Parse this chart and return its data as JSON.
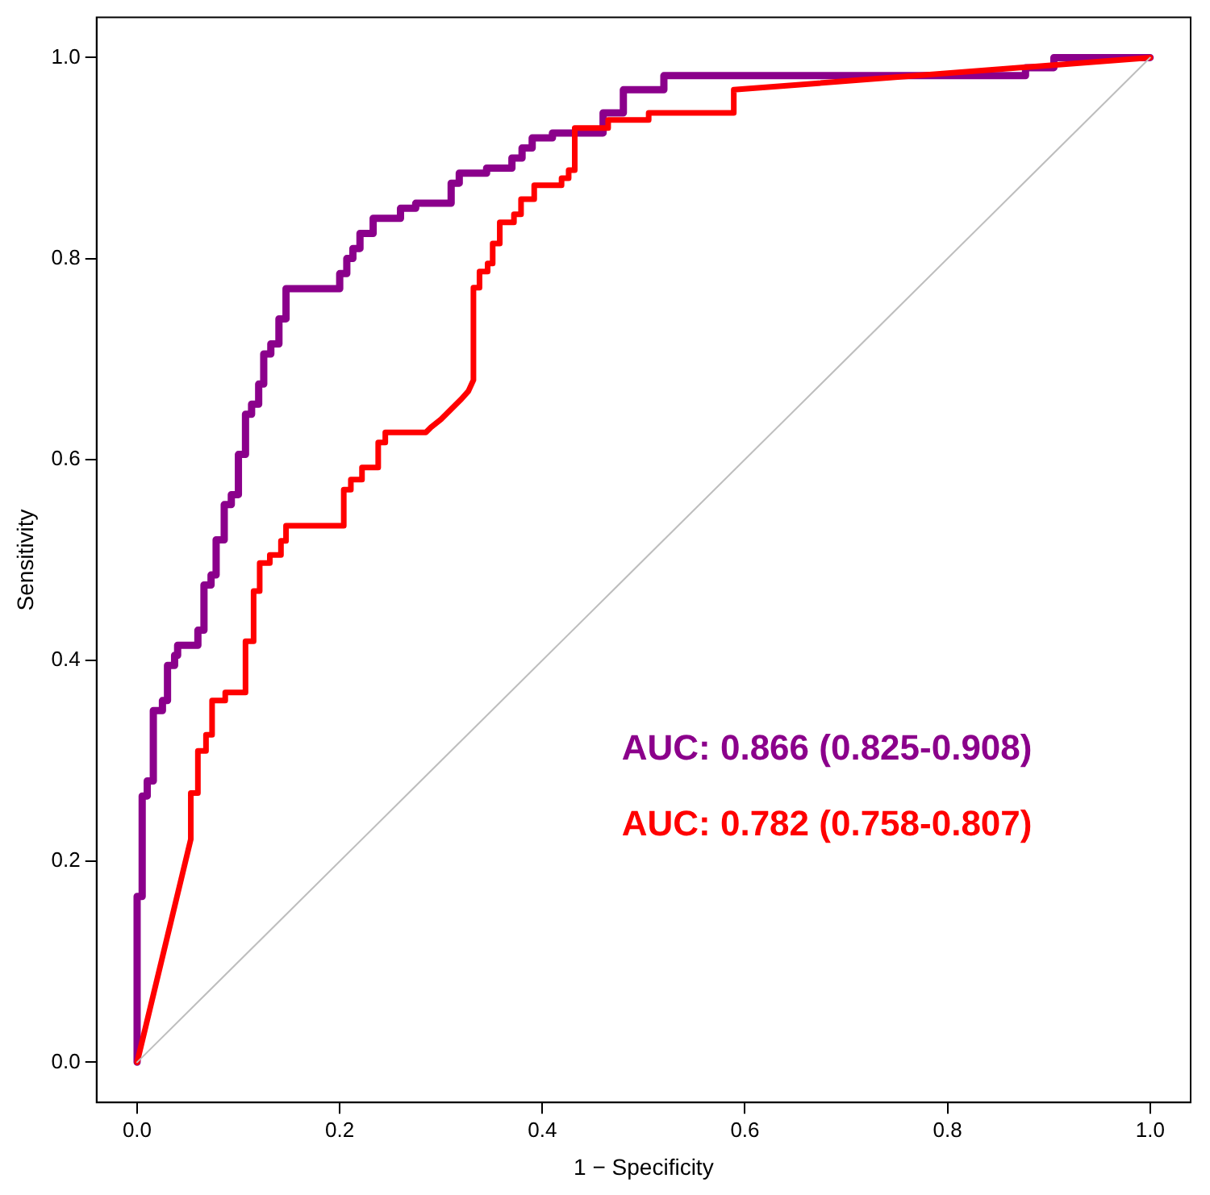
{
  "chart_data": {
    "type": "line",
    "xlabel": "1 − Specificity",
    "ylabel": "Sensitivity",
    "xlim": [
      -0.04,
      1.04
    ],
    "ylim": [
      -0.04,
      1.04
    ],
    "xticks": [
      {
        "value": 0,
        "label": "0.0"
      },
      {
        "value": 0.2,
        "label": "0.2"
      },
      {
        "value": 0.4,
        "label": "0.4"
      },
      {
        "value": 0.6,
        "label": "0.6"
      },
      {
        "value": 0.8,
        "label": "0.8"
      },
      {
        "value": 1,
        "label": "1.0"
      }
    ],
    "yticks": [
      {
        "value": 0,
        "label": "0.0"
      },
      {
        "value": 0.2,
        "label": "0.2"
      },
      {
        "value": 0.4,
        "label": "0.4"
      },
      {
        "value": 0.6,
        "label": "0.6"
      },
      {
        "value": 0.8,
        "label": "0.8"
      },
      {
        "value": 1,
        "label": "1.0"
      }
    ],
    "grid": false,
    "legend": false,
    "marker": "none",
    "line_style": "solid",
    "annotations": [
      "AUC: 0.866 (0.825-0.908)",
      "AUC: 0.782 (0.758-0.807)"
    ],
    "series": [
      {
        "color": "#8b008b",
        "x": [
          0,
          0,
          0.005,
          0.005,
          0.01,
          0.01,
          0.016,
          0.016,
          0.025,
          0.025,
          0.03,
          0.03,
          0.037,
          0.037,
          0.04,
          0.04,
          0.06,
          0.06,
          0.066,
          0.066,
          0.073,
          0.073,
          0.078,
          0.078,
          0.086,
          0.086,
          0.093,
          0.093,
          0.1,
          0.1,
          0.107,
          0.107,
          0.113,
          0.113,
          0.12,
          0.12,
          0.125,
          0.125,
          0.132,
          0.132,
          0.14,
          0.14,
          0.147,
          0.147,
          0.2,
          0.2,
          0.207,
          0.207,
          0.213,
          0.213,
          0.22,
          0.22,
          0.233,
          0.233,
          0.26,
          0.26,
          0.275,
          0.275,
          0.31,
          0.31,
          0.318,
          0.318,
          0.345,
          0.345,
          0.37,
          0.37,
          0.38,
          0.38,
          0.39,
          0.39,
          0.41,
          0.41,
          0.46,
          0.46,
          0.48,
          0.48,
          0.52,
          0.52,
          0.877,
          0.877,
          0.905,
          0.905,
          1
        ],
        "values": [
          0,
          0.165,
          0.165,
          0.265,
          0.265,
          0.28,
          0.28,
          0.35,
          0.35,
          0.36,
          0.36,
          0.395,
          0.395,
          0.405,
          0.405,
          0.415,
          0.415,
          0.43,
          0.43,
          0.475,
          0.475,
          0.485,
          0.485,
          0.52,
          0.52,
          0.555,
          0.555,
          0.565,
          0.565,
          0.605,
          0.605,
          0.645,
          0.645,
          0.655,
          0.655,
          0.675,
          0.675,
          0.705,
          0.705,
          0.715,
          0.715,
          0.74,
          0.74,
          0.77,
          0.77,
          0.785,
          0.785,
          0.8,
          0.8,
          0.81,
          0.81,
          0.825,
          0.825,
          0.84,
          0.84,
          0.85,
          0.85,
          0.855,
          0.855,
          0.875,
          0.875,
          0.885,
          0.885,
          0.89,
          0.89,
          0.9,
          0.9,
          0.91,
          0.91,
          0.92,
          0.92,
          0.925,
          0.925,
          0.945,
          0.945,
          0.968,
          0.968,
          0.982,
          0.982,
          0.99,
          0.99,
          1,
          1
        ]
      },
      {
        "color": "#ff0000",
        "x": [
          0,
          0.053,
          0.053,
          0.06,
          0.06,
          0.068,
          0.068,
          0.074,
          0.074,
          0.087,
          0.087,
          0.107,
          0.107,
          0.115,
          0.115,
          0.121,
          0.121,
          0.131,
          0.131,
          0.142,
          0.142,
          0.147,
          0.147,
          0.204,
          0.204,
          0.211,
          0.211,
          0.222,
          0.222,
          0.238,
          0.238,
          0.245,
          0.245,
          0.285,
          0.29,
          0.3,
          0.31,
          0.32,
          0.327,
          0.332,
          0.332,
          0.338,
          0.338,
          0.346,
          0.346,
          0.351,
          0.351,
          0.358,
          0.358,
          0.372,
          0.372,
          0.379,
          0.379,
          0.392,
          0.392,
          0.419,
          0.419,
          0.426,
          0.426,
          0.432,
          0.432,
          0.465,
          0.465,
          0.505,
          0.505,
          0.589,
          0.589,
          1
        ],
        "values": [
          0,
          0.222,
          0.268,
          0.268,
          0.31,
          0.31,
          0.326,
          0.326,
          0.36,
          0.36,
          0.368,
          0.368,
          0.419,
          0.419,
          0.469,
          0.469,
          0.497,
          0.497,
          0.505,
          0.505,
          0.519,
          0.519,
          0.534,
          0.534,
          0.57,
          0.57,
          0.58,
          0.58,
          0.592,
          0.592,
          0.617,
          0.617,
          0.627,
          0.627,
          0.632,
          0.64,
          0.65,
          0.66,
          0.668,
          0.679,
          0.771,
          0.771,
          0.787,
          0.787,
          0.795,
          0.795,
          0.815,
          0.815,
          0.836,
          0.836,
          0.844,
          0.844,
          0.859,
          0.859,
          0.873,
          0.873,
          0.88,
          0.88,
          0.888,
          0.888,
          0.93,
          0.93,
          0.938,
          0.938,
          0.945,
          0.945,
          0.968,
          1
        ]
      },
      {
        "color": "#bebebe",
        "x": [
          0,
          1
        ],
        "values": [
          0,
          1
        ]
      }
    ]
  }
}
